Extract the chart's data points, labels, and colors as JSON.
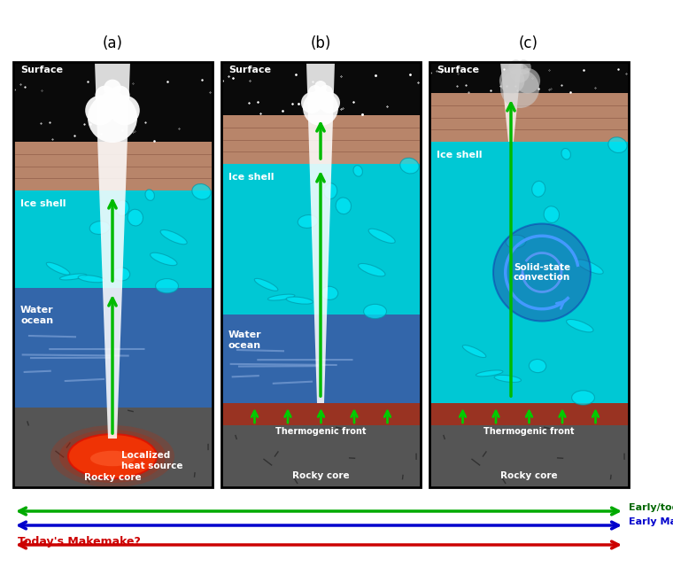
{
  "title_a": "(a)",
  "title_b": "(b)",
  "title_c": "(c)",
  "panel_labels": [
    "(a)",
    "(b)",
    "(c)"
  ],
  "surface_label": "Surface",
  "ice_shell_label": "Ice shell",
  "water_ocean_label": "Water\nocean",
  "rocky_core_label_a": "Rocky core",
  "rocky_core_label_b": "Rocky core",
  "rocky_core_label_c": "Rocky core",
  "localized_heat_label": "Localized\nheat source",
  "thermogenic_b": "Thermogenic front",
  "thermogenic_c": "Thermogenic front",
  "solid_state_label": "Solid-state\nconvection",
  "arrow_green_label": "Early/today's Eris?",
  "arrow_blue_label": "Early Makemake?",
  "arrow_red_label": "Today's Makemake?",
  "bg_color": "#ffffff",
  "space_color": "#0a0a0a",
  "surface_color": "#c8a882",
  "ice_color": "#00e5ff",
  "ocean_color": "#4488cc",
  "rock_color": "#555555",
  "hot_rock_color": "#8b4513",
  "lava_color": "#cc2200",
  "thermogenic_color": "#cc3300"
}
